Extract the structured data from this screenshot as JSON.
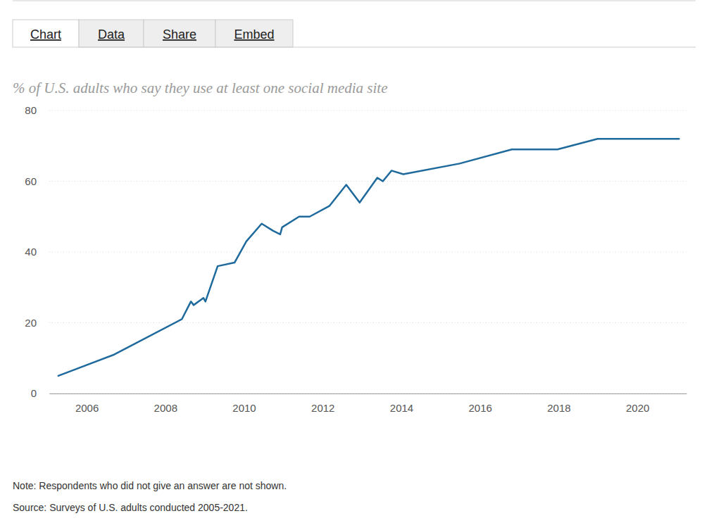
{
  "tabs": [
    "Chart",
    "Data",
    "Share",
    "Embed"
  ],
  "chart_data": {
    "type": "line",
    "title": "% of U.S. adults who say they use at least one social media site",
    "note": "Note: Respondents who did not give an answer are not shown.",
    "source": "Source: Surveys of U.S. adults conducted 2005-2021.",
    "x": [
      2005.28,
      2006.7,
      2008.42,
      2008.65,
      2008.72,
      2008.97,
      2009.02,
      2009.33,
      2009.76,
      2010.06,
      2010.45,
      2010.74,
      2010.92,
      2010.97,
      2011.4,
      2011.67,
      2012.17,
      2012.6,
      2012.94,
      2013.39,
      2013.53,
      2013.75,
      2014.05,
      2015.48,
      2016.81,
      2017.97,
      2018.99,
      2021.06
    ],
    "values": [
      5,
      11,
      21,
      26,
      25,
      27,
      26,
      36,
      37,
      43,
      48,
      46,
      45,
      47,
      50,
      50,
      53,
      59,
      54,
      61,
      60,
      63,
      62,
      65,
      69,
      69,
      72,
      72
    ],
    "color": "#1f6a9c",
    "xlim": [
      2005.05,
      2021.25
    ],
    "xticks": [
      2006,
      2008,
      2010,
      2012,
      2014,
      2016,
      2018,
      2020
    ],
    "ylim": [
      0,
      80
    ],
    "yticks": [
      0,
      20,
      40,
      60,
      80
    ],
    "grid": true
  }
}
